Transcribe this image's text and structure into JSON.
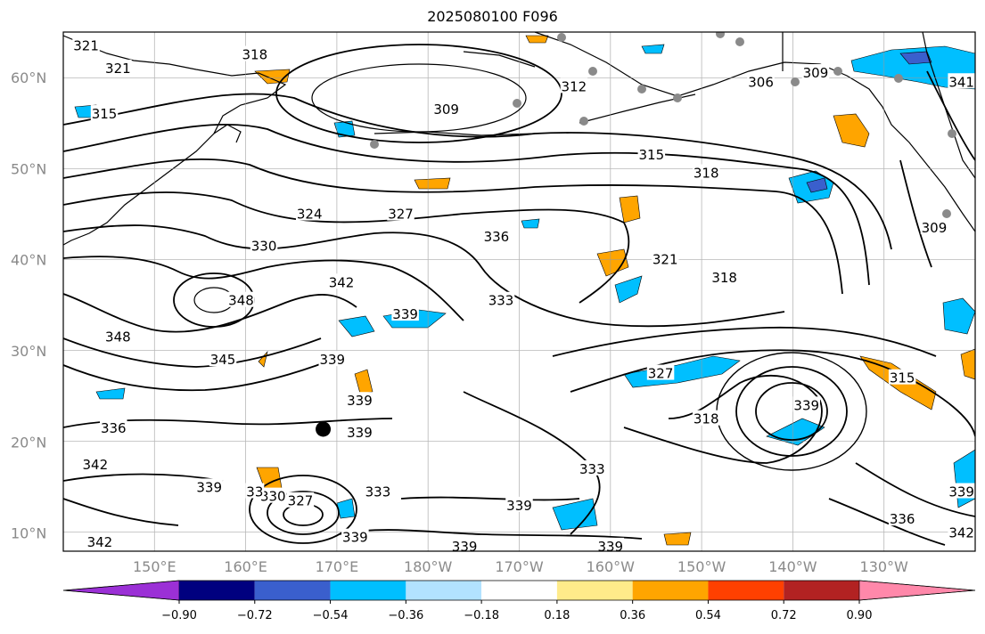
{
  "title": "2025080100 F096",
  "map": {
    "lat_labels": [
      "60°N",
      "50°N",
      "40°N",
      "30°N",
      "20°N",
      "10°N"
    ],
    "lon_labels": [
      "150°E",
      "160°E",
      "170°E",
      "180°W",
      "170°W",
      "160°W",
      "150°W",
      "140°W",
      "130°W"
    ],
    "lat_values": [
      60,
      50,
      40,
      30,
      20,
      10
    ],
    "lon_values": [
      150,
      160,
      170,
      180,
      190,
      200,
      210,
      220,
      230
    ],
    "extent": {
      "lon_min": 140,
      "lon_max": 240,
      "lat_min": 8,
      "lat_max": 65
    },
    "gridlines": true,
    "contour_labels": [
      {
        "text": "321",
        "lon": 142.5,
        "lat": 63.5
      },
      {
        "text": "318",
        "lon": 161,
        "lat": 62.5
      },
      {
        "text": "321",
        "lon": 146,
        "lat": 61
      },
      {
        "text": "315",
        "lon": 144.5,
        "lat": 56
      },
      {
        "text": "309",
        "lon": 182,
        "lat": 56.5
      },
      {
        "text": "312",
        "lon": 196,
        "lat": 59
      },
      {
        "text": "306",
        "lon": 216.5,
        "lat": 59.5
      },
      {
        "text": "309",
        "lon": 222.5,
        "lat": 60.5
      },
      {
        "text": "341",
        "lon": 238.5,
        "lat": 59.5
      },
      {
        "text": "315",
        "lon": 204.5,
        "lat": 51.5
      },
      {
        "text": "318",
        "lon": 210.5,
        "lat": 49.5
      },
      {
        "text": "324",
        "lon": 167,
        "lat": 45
      },
      {
        "text": "327",
        "lon": 177,
        "lat": 45
      },
      {
        "text": "330",
        "lon": 162,
        "lat": 41.5
      },
      {
        "text": "336",
        "lon": 187.5,
        "lat": 42.5
      },
      {
        "text": "309",
        "lon": 235.5,
        "lat": 43.5
      },
      {
        "text": "321",
        "lon": 206,
        "lat": 40
      },
      {
        "text": "342",
        "lon": 170.5,
        "lat": 37.5
      },
      {
        "text": "318",
        "lon": 212.5,
        "lat": 38
      },
      {
        "text": "348",
        "lon": 159.5,
        "lat": 35.5
      },
      {
        "text": "339",
        "lon": 177.5,
        "lat": 34
      },
      {
        "text": "333",
        "lon": 188,
        "lat": 35.5
      },
      {
        "text": "348",
        "lon": 146,
        "lat": 31.5
      },
      {
        "text": "345",
        "lon": 157.5,
        "lat": 29
      },
      {
        "text": "339",
        "lon": 169.5,
        "lat": 29
      },
      {
        "text": "327",
        "lon": 205.5,
        "lat": 27.5
      },
      {
        "text": "315",
        "lon": 232,
        "lat": 27
      },
      {
        "text": "339",
        "lon": 172.5,
        "lat": 24.5
      },
      {
        "text": "339",
        "lon": 221.5,
        "lat": 24
      },
      {
        "text": "336",
        "lon": 145.5,
        "lat": 21.5
      },
      {
        "text": "318",
        "lon": 210.5,
        "lat": 22.5
      },
      {
        "text": "339",
        "lon": 172.5,
        "lat": 21
      },
      {
        "text": "342",
        "lon": 143.5,
        "lat": 17.5
      },
      {
        "text": "333",
        "lon": 198,
        "lat": 17
      },
      {
        "text": "339",
        "lon": 156,
        "lat": 15
      },
      {
        "text": "330",
        "lon": 163,
        "lat": 14
      },
      {
        "text": "33",
        "lon": 161,
        "lat": 14.5
      },
      {
        "text": "327",
        "lon": 166,
        "lat": 13.5
      },
      {
        "text": "333",
        "lon": 174.5,
        "lat": 14.5
      },
      {
        "text": "339",
        "lon": 190,
        "lat": 13
      },
      {
        "text": "336",
        "lon": 232,
        "lat": 11.5
      },
      {
        "text": "339",
        "lon": 238.5,
        "lat": 14.5
      },
      {
        "text": "342",
        "lon": 144,
        "lat": 9
      },
      {
        "text": "339",
        "lon": 172,
        "lat": 9.5
      },
      {
        "text": "339",
        "lon": 184,
        "lat": 8.5
      },
      {
        "text": "339",
        "lon": 200,
        "lat": 8.5
      },
      {
        "text": "342",
        "lon": 238.5,
        "lat": 10
      }
    ],
    "marker": {
      "lon": 168.5,
      "lat": 21.4
    }
  },
  "colorbar": {
    "ticks": [
      "−0.90",
      "−0.72",
      "−0.54",
      "−0.36",
      "−0.18",
      "0.18",
      "0.36",
      "0.54",
      "0.72",
      "0.90"
    ],
    "colors": [
      "#9b30d6",
      "#00007f",
      "#3a5fcd",
      "#00bfff",
      "#b2e2ff",
      "#ffffff",
      "#ffeb8a",
      "#ffa500",
      "#ff4000",
      "#b22222",
      "#ff88aa"
    ]
  }
}
